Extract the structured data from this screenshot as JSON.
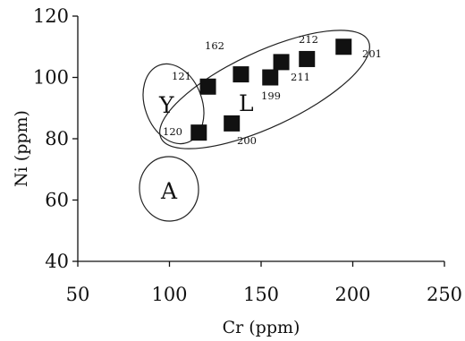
{
  "chart_data": {
    "type": "scatter",
    "title": "",
    "xlabel": "Cr (ppm)",
    "ylabel": "Ni (ppm)",
    "xlim": [
      50,
      250
    ],
    "ylim": [
      40,
      120
    ],
    "xticks": [
      50,
      100,
      150,
      200,
      250
    ],
    "yticks": [
      40,
      60,
      80,
      100,
      120
    ],
    "grid": false,
    "marker": "filled-square",
    "marker_color": "#111111",
    "points": [
      {
        "label": "120",
        "x": 116,
        "y": 82
      },
      {
        "label": "121",
        "x": 121,
        "y": 97
      },
      {
        "label": "200",
        "x": 134,
        "y": 85
      },
      {
        "label": "162",
        "x": 139,
        "y": 101
      },
      {
        "label": "199",
        "x": 155,
        "y": 100
      },
      {
        "label": "211",
        "x": 161,
        "y": 105
      },
      {
        "label": "212",
        "x": 175,
        "y": 106
      },
      {
        "label": "201",
        "x": 195,
        "y": 110
      }
    ],
    "groups": [
      {
        "name": "L",
        "shape": "ellipse"
      },
      {
        "name": "Y",
        "shape": "ellipse"
      },
      {
        "name": "A",
        "shape": "ellipse"
      }
    ]
  }
}
